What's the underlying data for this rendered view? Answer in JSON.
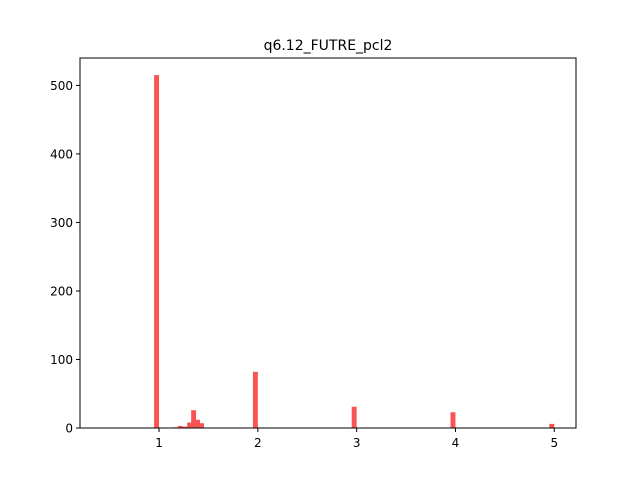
{
  "chart_data": {
    "type": "bar",
    "title": "q6.12_FUTRE_pcl2",
    "xlabel": "",
    "ylabel": "",
    "xlim": [
      0.2,
      5.22
    ],
    "ylim": [
      0,
      540
    ],
    "color": "#f95454",
    "bin_width": 0.05,
    "xticks": [
      "1",
      "2",
      "3",
      "4",
      "5"
    ],
    "yticks": [
      "0",
      "100",
      "200",
      "300",
      "400",
      "500"
    ],
    "grid": false,
    "bars": [
      {
        "x": 0.975,
        "value": 515
      },
      {
        "x": 1.165,
        "value": 1
      },
      {
        "x": 1.215,
        "value": 3
      },
      {
        "x": 1.265,
        "value": 2
      },
      {
        "x": 1.31,
        "value": 8
      },
      {
        "x": 1.35,
        "value": 26
      },
      {
        "x": 1.39,
        "value": 12
      },
      {
        "x": 1.43,
        "value": 7
      },
      {
        "x": 1.975,
        "value": 82
      },
      {
        "x": 2.975,
        "value": 31
      },
      {
        "x": 3.975,
        "value": 23
      },
      {
        "x": 4.975,
        "value": 6
      }
    ]
  }
}
